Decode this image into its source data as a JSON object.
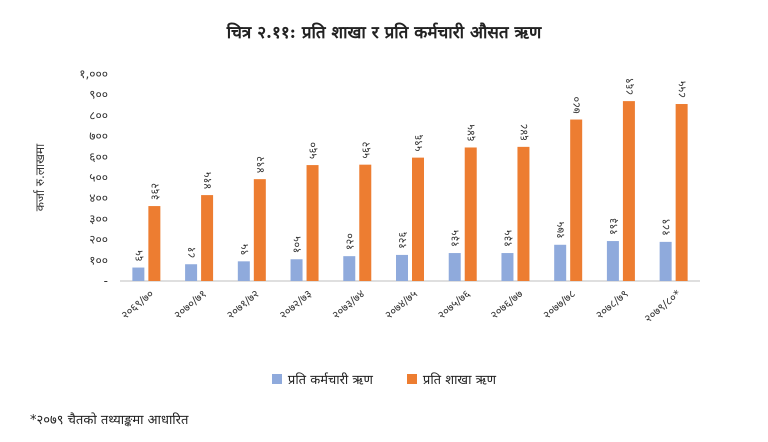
{
  "chart_data": {
    "type": "bar",
    "title": "चित्र २.११: प्रति शाखा र प्रति कर्मचारी औसत ऋण",
    "ylabel": "कर्जा रु.लाखमा",
    "xlabel": "",
    "ylim": [
      0,
      1000
    ],
    "yticks": [
      "-",
      "१००",
      "२००",
      "३००",
      "४००",
      "५००",
      "६००",
      "७००",
      "८००",
      "९००",
      "१,०००"
    ],
    "categories": [
      "२०६९/७०",
      "२०७०/७१",
      "२०७१/७२",
      "२०७२/७३",
      "२०७३/७४",
      "२०७४/७५",
      "२०७५/७६",
      "२०७६/७७",
      "२०७७/७८",
      "२०७८/७९",
      "२०७९/८०*"
    ],
    "series": [
      {
        "name": "प्रति कर्मचारी ऋण",
        "color": "#8FAADC",
        "values": [
          65,
          81,
          95,
          105,
          120,
          126,
          135,
          135,
          175,
          193,
          189
        ],
        "labels": [
          "६५",
          "८१",
          "९५",
          "१०५",
          "१२०",
          "१२६",
          "१३५",
          "१३५",
          "१७५",
          "१९३",
          "१८९"
        ]
      },
      {
        "name": "प्रति शाखा ऋण",
        "color": "#ED7D31",
        "values": [
          362,
          415,
          492,
          560,
          562,
          596,
          645,
          648,
          780,
          869,
          855
        ],
        "labels": [
          "३६२",
          "४१५",
          "४९२",
          "५६०",
          "५६२",
          "५९६",
          "६४५",
          "६४८",
          "७८०",
          "८६९",
          "८५५"
        ]
      }
    ],
    "grid": false,
    "legend_position": "bottom"
  },
  "footnote": "*२०७९ चैतको तथ्याङ्कमा आधारित"
}
